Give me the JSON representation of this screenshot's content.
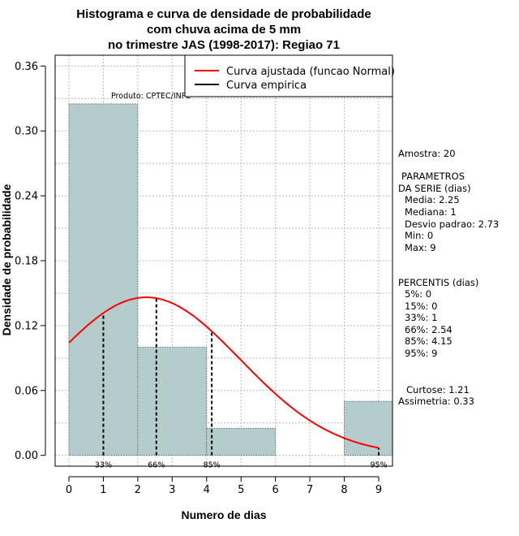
{
  "chart_data": {
    "type": "bar",
    "title_lines": [
      "Histograma e curva de densidade de probabilidade",
      "com chuva acima de 5 mm",
      "no trimestre JAS (1998-2017): Regiao 71"
    ],
    "xlabel": "Numero de dias",
    "ylabel": "Densidade de probabilidade",
    "xlim": [
      -0.4,
      9.4
    ],
    "ylim": [
      -0.01,
      0.37
    ],
    "x_ticks": [
      "0",
      "1",
      "2",
      "3",
      "4",
      "5",
      "6",
      "7",
      "8",
      "9"
    ],
    "y_ticks": [
      "0.00",
      "0.06",
      "0.12",
      "0.18",
      "0.24",
      "0.30",
      "0.36"
    ],
    "bins": [
      {
        "from": 0,
        "to": 2,
        "density": 0.325
      },
      {
        "from": 2,
        "to": 4,
        "density": 0.1
      },
      {
        "from": 4,
        "to": 6,
        "density": 0.025
      },
      {
        "from": 6,
        "to": 8,
        "density": 0.0
      },
      {
        "from": 8,
        "to": 10,
        "density": 0.05
      }
    ],
    "normal_fit": {
      "mean": 2.25,
      "sd": 2.73,
      "x_from": 0,
      "x_to": 9,
      "color": "#ff0000"
    },
    "percentile_markers": [
      {
        "label": "33%",
        "x": 1
      },
      {
        "label": "66%",
        "x": 2.54
      },
      {
        "label": "85%",
        "x": 4.15
      },
      {
        "label": "95%",
        "x": 9
      }
    ],
    "legend": [
      {
        "label": "Curva ajustada (funcao Normal)",
        "color": "#ff0000"
      },
      {
        "label": "Curva empirica",
        "color": "#000000"
      }
    ],
    "source_label": "Produto: CPTEC/INPE",
    "bar_color": "#b4cccc",
    "grid": true
  },
  "side_panel": {
    "sample": "Amostra: 20",
    "params_title_1": "PARAMETROS",
    "params_title_2": "DA SERIE (dias)",
    "params": [
      "Media: 2.25",
      "Mediana: 1",
      "Desvio padrao: 2.73",
      "Min: 0",
      "Max: 9"
    ],
    "percentis_title": "PERCENTIS (dias)",
    "percentis": [
      "5%: 0",
      "15%: 0",
      "33%: 1",
      "66%: 2.54",
      "85%: 4.15",
      "95%: 9"
    ],
    "curtose": "Curtose: 1.21",
    "assimetria": "Assimetria: 0.33"
  }
}
